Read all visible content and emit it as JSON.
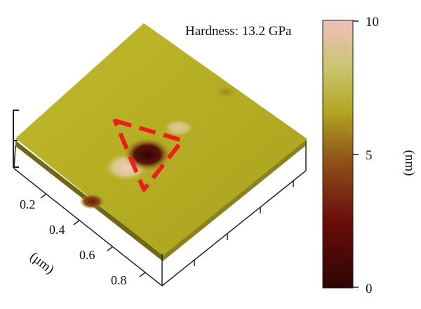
{
  "annotation": {
    "hardness": "Hardness: 13.2 GPa"
  },
  "axis": {
    "ticks": [
      "0.2",
      "0.4",
      "0.6",
      "0.8"
    ],
    "unit": "(μm)"
  },
  "colorbar": {
    "max": "10",
    "mid": "5",
    "min": "0",
    "unit": "(nm)",
    "stops": [
      "#3a0604",
      "#6b0d0b",
      "#9b5a1a",
      "#b5aa21",
      "#c8c56a",
      "#e8b8ad"
    ]
  },
  "colors": {
    "surface": "#b9b023",
    "indent_dark": "#3b0a06",
    "indent_light": "#f0c4b8",
    "marker": "#ee1c1c"
  }
}
